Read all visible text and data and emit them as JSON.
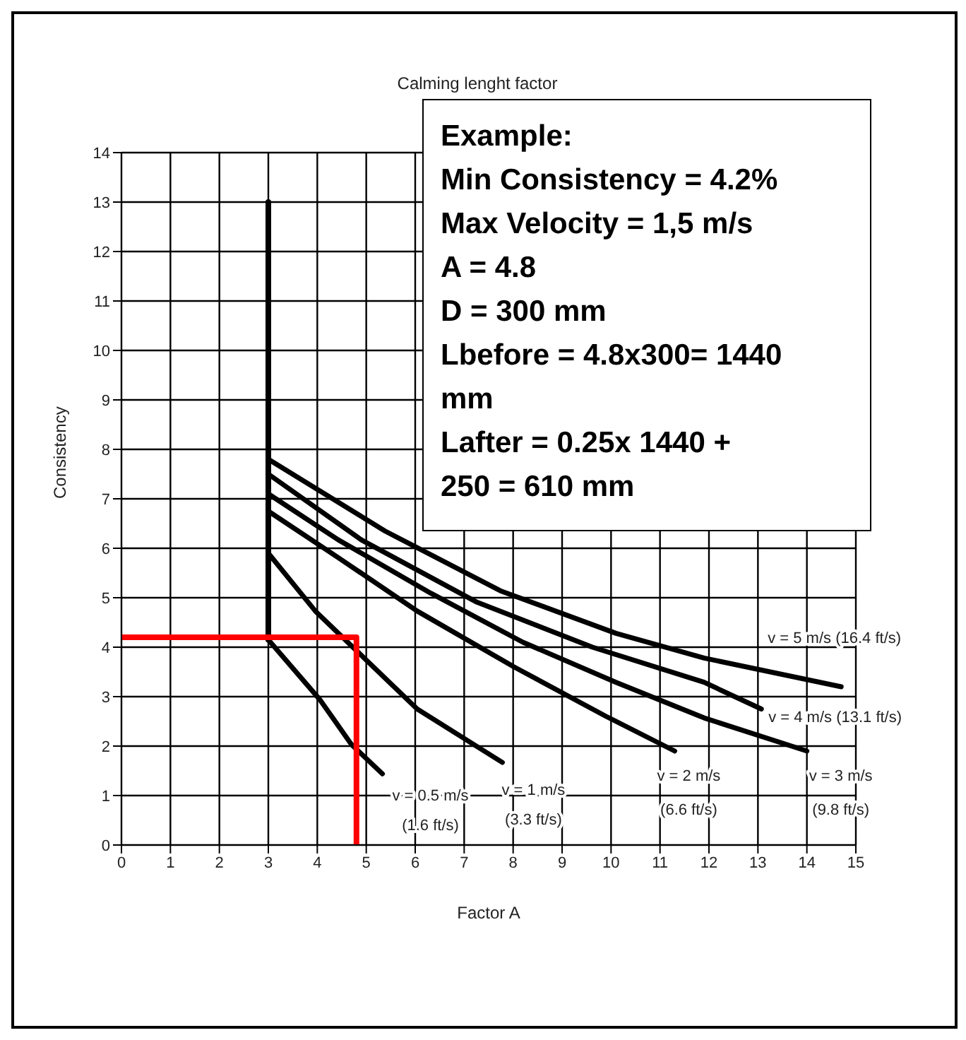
{
  "chart_data": {
    "type": "line",
    "title": "Calming lenght factor",
    "xlabel": "Factor A",
    "ylabel": "Consistency",
    "xlim": [
      0,
      15
    ],
    "xticks": [
      0,
      1,
      2,
      3,
      4,
      5,
      6,
      7,
      8,
      9,
      10,
      11,
      12,
      13,
      14,
      15
    ],
    "ylim": [
      0,
      14
    ],
    "yticks": [
      0,
      1,
      2,
      3,
      4,
      5,
      6,
      7,
      8,
      9,
      10,
      11,
      12,
      13,
      14
    ],
    "grid": true,
    "line_style": "solid",
    "annotations": [
      "Example:",
      "Min Consistency = 4.2%",
      "Max Velocity = 1,5 m/s",
      "A = 4.8",
      "D = 300 mm",
      "Lbefore = 4.8x300= 1440 mm",
      "Lafter = 0.25x 1440 + 250 = 610 mm"
    ],
    "series": [
      {
        "name": "v = 0.5 m/s (1.6 ft/s)",
        "color": "#000000",
        "x": [
          3,
          4.06,
          4.7,
          5.33
        ],
        "values": [
          4.15,
          2.93,
          2.03,
          1.44
        ]
      },
      {
        "name": "v = 1 m/s (3.3 ft/s)",
        "color": "#000000",
        "x": [
          3,
          3.96,
          5,
          6.04,
          7.78
        ],
        "values": [
          5.9,
          4.73,
          3.74,
          2.75,
          1.67
        ]
      },
      {
        "name": "v = 2 m/s (6.6 ft/s)",
        "color": "#000000",
        "x": [
          3,
          4.43,
          6.04,
          8.02,
          9.9,
          11.3
        ],
        "values": [
          6.75,
          5.81,
          4.73,
          3.6,
          2.6,
          1.9
        ]
      },
      {
        "name": "v = 3 m/s (9.8 ft/s)",
        "color": "#000000",
        "x": [
          3,
          4.43,
          6.32,
          8.2,
          10.1,
          11.9,
          14
        ],
        "values": [
          7.1,
          6.17,
          5.09,
          4.1,
          3.29,
          2.57,
          1.9
        ]
      },
      {
        "name": "v = 4 m/s (13.1 ft/s)",
        "color": "#000000",
        "x": [
          3,
          4.9,
          7.26,
          9.62,
          11.9,
          13.07
        ],
        "values": [
          7.5,
          6.17,
          4.91,
          4.0,
          3.29,
          2.75
        ]
      },
      {
        "name": "v = 5 m/s (16.4 ft/s)",
        "color": "#000000",
        "x": [
          3,
          5.38,
          7.74,
          10.1,
          11.9,
          14.7
        ],
        "values": [
          7.8,
          6.35,
          5.14,
          4.28,
          3.78,
          3.2
        ]
      },
      {
        "color": "#000000",
        "x": [
          3,
          3
        ],
        "values": [
          4.15,
          13
        ]
      },
      {
        "color": "#ff0000",
        "x": [
          0,
          4.8,
          4.8
        ],
        "values": [
          4.2,
          4.2,
          0
        ]
      }
    ]
  }
}
